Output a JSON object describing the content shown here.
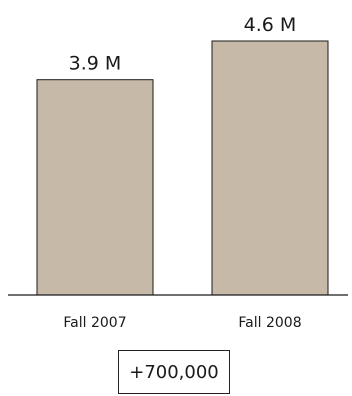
{
  "chart_data": {
    "type": "bar",
    "categories": [
      "Fall 2007",
      "Fall 2008"
    ],
    "values": [
      3.9,
      4.6
    ],
    "value_labels": [
      "3.9 M",
      "4.6 M"
    ],
    "title": "",
    "xlabel": "",
    "ylabel": "",
    "ylim": [
      0,
      5.0
    ],
    "grid": false,
    "legend": "none",
    "bar_color": "#c6b9a8",
    "bar_stroke": "#1a1a1a"
  },
  "annotation": {
    "change_label": "+700,000"
  }
}
